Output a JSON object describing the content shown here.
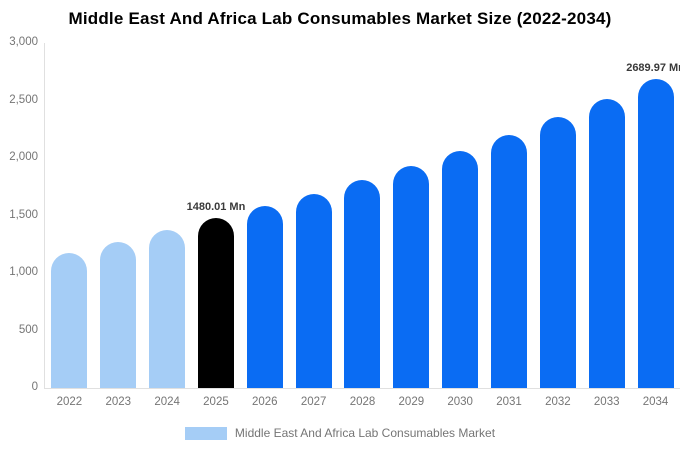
{
  "chart_data": {
    "type": "bar",
    "title": "Middle East And Africa Lab Consumables Market Size (2022-2034)",
    "series_name": "Middle East And Africa Lab Consumables Market",
    "unit": "Mn",
    "categories": [
      "2022",
      "2023",
      "2024",
      "2025",
      "2026",
      "2027",
      "2028",
      "2029",
      "2030",
      "2031",
      "2032",
      "2033",
      "2034"
    ],
    "values": [
      1174.9,
      1268.9,
      1370.4,
      1480.01,
      1581.5,
      1690.0,
      1806.0,
      1929.9,
      2062.4,
      2204.0,
      2355.3,
      2516.9,
      2689.97
    ],
    "bar_roles": [
      "historical",
      "historical",
      "historical",
      "highlight",
      "forecast",
      "forecast",
      "forecast",
      "forecast",
      "forecast",
      "forecast",
      "forecast",
      "forecast",
      "forecast"
    ],
    "colors": {
      "historical": "#a5cdf6",
      "highlight": "#000000",
      "forecast": "#0a6cf3"
    },
    "data_labels": [
      {
        "category": "2025",
        "text": "1480.01 Mn"
      },
      {
        "category": "2034",
        "text": "2689.97 Mn"
      }
    ],
    "ylim": [
      0,
      3000
    ],
    "yticks": [
      {
        "value": 3000,
        "label": "3,000"
      },
      {
        "value": 2500,
        "label": "2,500"
      },
      {
        "value": 2000,
        "label": "2,000"
      },
      {
        "value": 1500,
        "label": "1,500"
      },
      {
        "value": 1000,
        "label": "1,000"
      },
      {
        "value": 500,
        "label": "500"
      },
      {
        "value": 0,
        "label": "0"
      }
    ],
    "grid": false,
    "axis_color": "#e0e0e0",
    "tick_label_color": "#757575",
    "data_label_color": "#3a3a3a",
    "legend": {
      "position": "bottom",
      "label": "Middle East And Africa Lab Consumables Market",
      "swatch_color": "#a5cdf6"
    }
  }
}
